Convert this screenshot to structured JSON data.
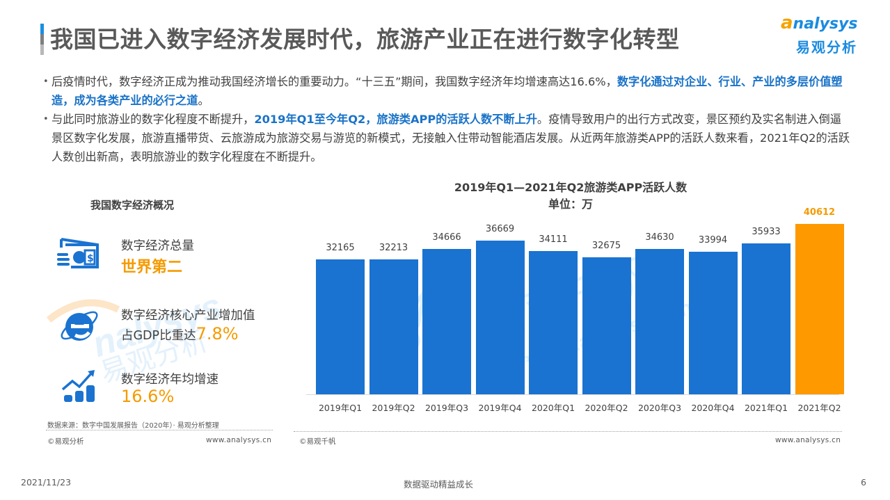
{
  "header": {
    "title": "我国已进入数字经济发展时代，旅游产业正在进行数字化转型",
    "logo_en": "nalysys",
    "logo_en_initial": "a",
    "logo_cn": "易观分析"
  },
  "bullets": [
    {
      "parts": [
        {
          "text": "后疫情时代，数字经济正成为推动我国经济增长的重要动力。“十三五”期间，我国数字经济年均增速高达16.6%，",
          "highlight": false
        },
        {
          "text": "数字化通过对企业、行业、产业的多层价值塑造，成为各类产业的必行之道",
          "highlight": true
        },
        {
          "text": "。",
          "highlight": false
        }
      ]
    },
    {
      "parts": [
        {
          "text": "与此同时旅游业的数字化程度不断提升，",
          "highlight": false
        },
        {
          "text": "2019年Q1至今年Q2，旅游类APP的活跃人数不断上升",
          "highlight": true
        },
        {
          "text": "。疫情导致用户的出行方式改变，景区预约及实名制进入倒逼景区数字化发展，旅游直播带货、云旅游成为旅游交易与游览的新模式，无接触入住带动智能酒店发展。从近两年旅游类APP的活跃人数来看，2021年Q2的活跃人数创出新高，表明旅游业的数字化程度在不断提升。",
          "highlight": false
        }
      ]
    }
  ],
  "left_panel": {
    "title": "我国数字经济概况",
    "stats": [
      {
        "icon": "money-bill-coins-icon",
        "label": "数字经济总量",
        "value": "世界第二"
      },
      {
        "icon": "internet-explorer-icon",
        "label": "数字经济核心产业增加值",
        "label2": "占GDP比重达",
        "value": "7.8%"
      },
      {
        "icon": "growth-arrow-coins-icon",
        "label": "数字经济年均增速",
        "value": "16.6%"
      }
    ],
    "source": "数据来源：数字中国发展报告（2020年）· 易观分析整理",
    "copyright": "©易观分析",
    "url": "www.analysys.cn"
  },
  "right_panel": {
    "copyright": "©易观千帆",
    "url": "www.analysys.cn"
  },
  "chart_data": {
    "type": "bar",
    "title": "2019年Q1—2021年Q2旅游类APP活跃人数",
    "subtitle": "单位：万",
    "xlabel": "",
    "ylabel": "",
    "categories": [
      "2019年Q1",
      "2019年Q2",
      "2019年Q3",
      "2019年Q4",
      "2020年Q1",
      "2020年Q2",
      "2020年Q3",
      "2020年Q4",
      "2021年Q1",
      "2021年Q2"
    ],
    "values": [
      32165,
      32213,
      34666,
      36669,
      34111,
      32675,
      34630,
      33994,
      35933,
      40612
    ],
    "highlight_index": 9,
    "colors": {
      "bar": "#1a73d0",
      "highlight": "#ff9900"
    },
    "grid": false,
    "legend": "none",
    "data_labels": true
  },
  "footer": {
    "date": "2021/11/23",
    "center": "数据驱动精益成长",
    "page": "6"
  }
}
